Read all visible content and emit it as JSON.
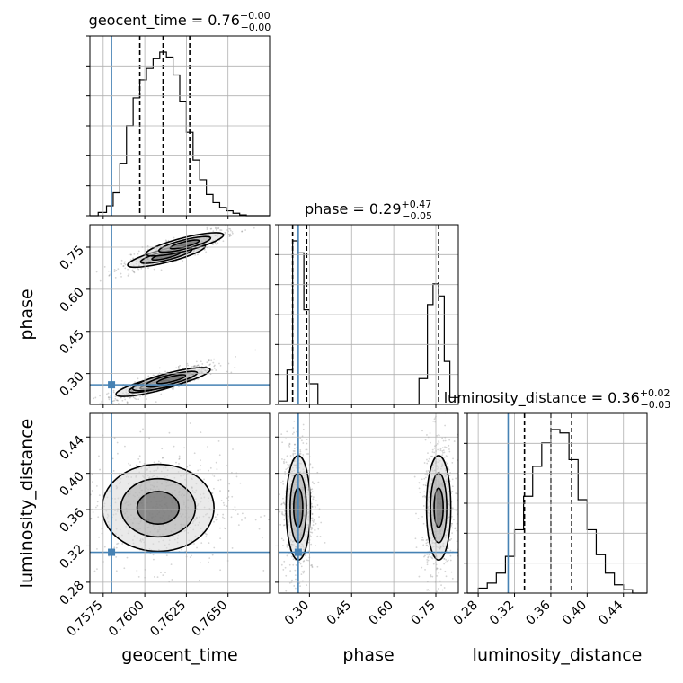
{
  "chart_data": {
    "type": "corner",
    "parameters": [
      "geocent_time",
      "phase",
      "luminosity_distance"
    ],
    "truths": {
      "geocent_time": 0.758,
      "phase": 0.26,
      "luminosity_distance": 0.313
    },
    "titles": [
      {
        "param": "geocent_time",
        "label": "geocent_time",
        "median": "0.76",
        "plus": "+0.00",
        "minus": "−0.00"
      },
      {
        "param": "phase",
        "label": "phase",
        "median": "0.29",
        "plus": "+0.47",
        "minus": "−0.05"
      },
      {
        "param": "luminosity_distance",
        "label": "luminosity_distance",
        "median": "0.36",
        "plus": "+0.02",
        "minus": "−0.03"
      }
    ],
    "axis_labels": {
      "x": [
        "geocent_time",
        "phase",
        "luminosity_distance"
      ],
      "y": [
        "phase",
        "luminosity_distance"
      ]
    },
    "ranges": {
      "geocent_time": [
        0.7567,
        0.7675
      ],
      "phase": [
        0.19,
        0.83
      ],
      "luminosity_distance": [
        0.268,
        0.466
      ]
    },
    "ticks": {
      "geocent_time": [
        "0.7575",
        "0.7600",
        "0.7625",
        "0.7650"
      ],
      "phase": [
        "0.30",
        "0.45",
        "0.60",
        "0.75"
      ],
      "luminosity_distance": [
        "0.28",
        "0.32",
        "0.36",
        "0.40",
        "0.44"
      ]
    },
    "quantiles": {
      "geocent_time": [
        0.7597,
        0.7611,
        0.7627
      ],
      "phase": [
        0.24,
        0.29,
        0.76
      ],
      "luminosity_distance": [
        0.331,
        0.36,
        0.383
      ]
    },
    "histograms": {
      "geocent_time": {
        "edges": [
          0.7567,
          0.7572,
          0.7577,
          0.7581,
          0.7585,
          0.7589,
          0.7593,
          0.7597,
          0.7601,
          0.7605,
          0.7609,
          0.7613,
          0.7617,
          0.7621,
          0.7625,
          0.7629,
          0.7633,
          0.7637,
          0.7641,
          0.7645,
          0.7649,
          0.7653,
          0.7657,
          0.7661,
          0.7665,
          0.7675
        ],
        "counts": [
          0.0,
          0.02,
          0.06,
          0.14,
          0.32,
          0.55,
          0.72,
          0.83,
          0.9,
          0.96,
          1.0,
          0.97,
          0.86,
          0.7,
          0.51,
          0.34,
          0.22,
          0.13,
          0.08,
          0.05,
          0.03,
          0.015,
          0.005,
          0.0,
          0.0
        ]
      },
      "phase": {
        "edges": [
          0.19,
          0.22,
          0.24,
          0.26,
          0.28,
          0.3,
          0.33,
          0.36,
          0.39,
          0.42,
          0.45,
          0.48,
          0.51,
          0.54,
          0.57,
          0.6,
          0.63,
          0.66,
          0.69,
          0.72,
          0.74,
          0.76,
          0.78,
          0.8,
          0.83
        ],
        "counts": [
          0.02,
          0.2,
          0.95,
          0.88,
          0.55,
          0.12,
          0.0,
          0.0,
          0.0,
          0.0,
          0.0,
          0.0,
          0.0,
          0.0,
          0.0,
          0.0,
          0.0,
          0.0,
          0.15,
          0.58,
          0.7,
          0.63,
          0.25,
          0.04
        ]
      },
      "luminosity_distance": {
        "edges": [
          0.268,
          0.28,
          0.29,
          0.3,
          0.31,
          0.32,
          0.33,
          0.34,
          0.35,
          0.36,
          0.37,
          0.38,
          0.39,
          0.4,
          0.41,
          0.42,
          0.43,
          0.44,
          0.45,
          0.466
        ],
        "counts": [
          0.0,
          0.03,
          0.06,
          0.12,
          0.22,
          0.38,
          0.58,
          0.76,
          0.9,
          0.98,
          0.96,
          0.8,
          0.56,
          0.38,
          0.23,
          0.12,
          0.05,
          0.02,
          0.0
        ]
      }
    },
    "hist2d_cores": {
      "phase_geocent_time": [
        {
          "x": 0.7606,
          "y": 0.26,
          "sx": 0.001,
          "sy": 0.01
        },
        {
          "x": 0.7616,
          "y": 0.28,
          "sx": 0.001,
          "sy": 0.01
        },
        {
          "x": 0.7613,
          "y": 0.72,
          "sx": 0.001,
          "sy": 0.01
        },
        {
          "x": 0.7624,
          "y": 0.76,
          "sx": 0.001,
          "sy": 0.01
        }
      ],
      "luminosity_distance_geocent_time": [
        {
          "x": 0.7608,
          "y": 0.362,
          "sx": 0.0014,
          "sy": 0.02
        }
      ],
      "luminosity_distance_phase": [
        {
          "x": 0.26,
          "y": 0.362,
          "sx": 0.018,
          "sy": 0.024
        },
        {
          "x": 0.76,
          "y": 0.362,
          "sx": 0.018,
          "sy": 0.024
        }
      ]
    }
  }
}
